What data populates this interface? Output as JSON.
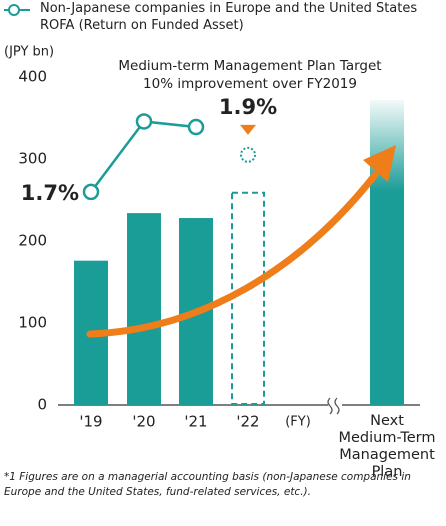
{
  "chart_data": {
    "type": "bar",
    "legend": "Non-Japanese companies in Europe and the United States ROFA (Return on Funded Asset)",
    "y_unit": "(JPY bn)",
    "x_unit": "(FY)",
    "annotation": [
      "Medium-term Management Plan Target",
      "10% improvement over FY2019"
    ],
    "footnote": "*1 Figures are on a managerial accounting basis (non-Japanese companies in Europe and the United States, fund-related services, etc.).",
    "categories": [
      "'19",
      "'20",
      "'21",
      "'22",
      "Next Medium-Term Management Plan"
    ],
    "ylim": [
      0,
      400
    ],
    "yticks": [
      0,
      100,
      200,
      300,
      400
    ],
    "grid": false,
    "series": [
      {
        "type": "bar",
        "color": "#1a9c97",
        "values": [
          176,
          234,
          228,
          260,
          372
        ],
        "dashed": [
          false,
          false,
          false,
          true,
          false
        ],
        "gradient": [
          false,
          false,
          false,
          false,
          true
        ]
      },
      {
        "type": "line",
        "name": "ROFA",
        "color": "#1a9c97",
        "axis": "y2",
        "values": [
          1.7,
          2.08,
          2.05,
          1.9,
          null
        ],
        "target_from": 3,
        "value_labels": [
          "1.7%",
          null,
          null,
          "1.9%",
          null
        ]
      }
    ],
    "y2lim": [
      0.55,
      2.32
    ]
  }
}
